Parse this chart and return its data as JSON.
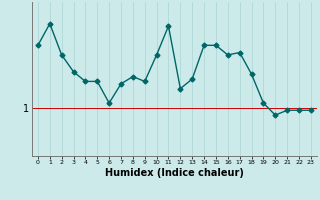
{
  "xlabel": "Humidex (Indice chaleur)",
  "x": [
    0,
    1,
    2,
    3,
    4,
    5,
    6,
    7,
    8,
    9,
    10,
    11,
    12,
    13,
    14,
    15,
    16,
    17,
    18,
    19,
    20,
    21,
    22,
    23
  ],
  "y": [
    2.3,
    2.75,
    2.1,
    1.75,
    1.55,
    1.55,
    1.1,
    1.5,
    1.65,
    1.55,
    2.1,
    2.7,
    1.4,
    1.6,
    2.3,
    2.3,
    2.1,
    2.15,
    1.7,
    1.1,
    0.85,
    0.95,
    0.95,
    0.95
  ],
  "hline_y": 1.0,
  "ylim": [
    0.0,
    3.2
  ],
  "xlim": [
    -0.5,
    23.5
  ],
  "line_color": "#006666",
  "hline_color": "#cc0000",
  "bg_color": "#cceaea",
  "grid_color": "#aad4d4",
  "ytick_val": 1,
  "ytick_label": "1",
  "marker": "D",
  "marker_size": 2.5,
  "line_width": 1.0
}
